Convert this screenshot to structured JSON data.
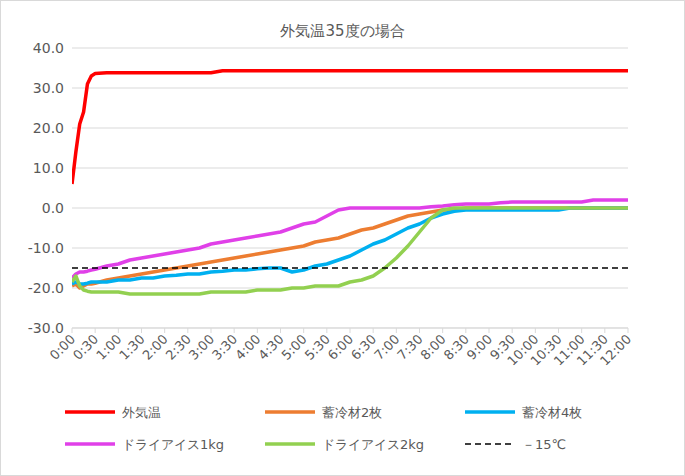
{
  "chart_data": {
    "type": "line",
    "title": "外気温35度の場合",
    "x": [
      0,
      5,
      10,
      15,
      20,
      25,
      30,
      45,
      60,
      75,
      90,
      105,
      120,
      135,
      150,
      165,
      180,
      195,
      210,
      225,
      240,
      255,
      270,
      285,
      300,
      315,
      330,
      345,
      360,
      375,
      390,
      405,
      420,
      435,
      450,
      465,
      480,
      495,
      510,
      525,
      540,
      555,
      570,
      585,
      600,
      615,
      630,
      645,
      660,
      675,
      690,
      705,
      720
    ],
    "xlim": [
      0,
      720
    ],
    "xticks": [
      {
        "value": 0,
        "label": "0:00"
      },
      {
        "value": 30,
        "label": "0:30"
      },
      {
        "value": 60,
        "label": "1:00"
      },
      {
        "value": 90,
        "label": "1:30"
      },
      {
        "value": 120,
        "label": "2:00"
      },
      {
        "value": 150,
        "label": "2:30"
      },
      {
        "value": 180,
        "label": "3:00"
      },
      {
        "value": 210,
        "label": "3:30"
      },
      {
        "value": 240,
        "label": "4:00"
      },
      {
        "value": 270,
        "label": "4:30"
      },
      {
        "value": 300,
        "label": "5:00"
      },
      {
        "value": 330,
        "label": "5:30"
      },
      {
        "value": 360,
        "label": "6:00"
      },
      {
        "value": 390,
        "label": "6:30"
      },
      {
        "value": 420,
        "label": "7:00"
      },
      {
        "value": 450,
        "label": "7:30"
      },
      {
        "value": 480,
        "label": "8:00"
      },
      {
        "value": 510,
        "label": "8:30"
      },
      {
        "value": 540,
        "label": "9:00"
      },
      {
        "value": 570,
        "label": "9:30"
      },
      {
        "value": 600,
        "label": "10:00"
      },
      {
        "value": 630,
        "label": "10:30"
      },
      {
        "value": 660,
        "label": "11:00"
      },
      {
        "value": 690,
        "label": "11:30"
      },
      {
        "value": 720,
        "label": "12:00"
      }
    ],
    "ylim": [
      -30,
      40
    ],
    "yticks": [
      {
        "value": -30,
        "label": "-30.0"
      },
      {
        "value": -20,
        "label": "-20.0"
      },
      {
        "value": -10,
        "label": "-10.0"
      },
      {
        "value": 0,
        "label": "0.0"
      },
      {
        "value": 10,
        "label": "10.0"
      },
      {
        "value": 20,
        "label": "20.0"
      },
      {
        "value": 30,
        "label": "30.0"
      },
      {
        "value": 40,
        "label": "40.0"
      }
    ],
    "grid": true,
    "legend": "bottom",
    "series": [
      {
        "name": "外気温",
        "color": "#ff0000",
        "line_style": "solid",
        "values": [
          6,
          14,
          21,
          24,
          31,
          33,
          33.6,
          33.8,
          33.8,
          33.8,
          33.8,
          33.8,
          33.8,
          33.8,
          33.8,
          33.8,
          33.8,
          34.3,
          34.3,
          34.3,
          34.3,
          34.3,
          34.3,
          34.3,
          34.3,
          34.3,
          34.3,
          34.3,
          34.3,
          34.3,
          34.3,
          34.3,
          34.3,
          34.3,
          34.3,
          34.3,
          34.3,
          34.3,
          34.3,
          34.3,
          34.3,
          34.3,
          34.3,
          34.3,
          34.3,
          34.3,
          34.3,
          34.3,
          34.3,
          34.3,
          34.3,
          34.3,
          34.3
        ]
      },
      {
        "name": "蓄冷材2枚",
        "color": "#ed7d31",
        "line_style": "solid",
        "values": [
          -19.5,
          -19,
          -20,
          -19.5,
          -19,
          -19,
          -18.8,
          -18,
          -17.5,
          -17,
          -16.5,
          -16,
          -15.5,
          -15,
          -14.5,
          -14,
          -13.5,
          -13,
          -12.5,
          -12,
          -11.5,
          -11,
          -10.5,
          -10,
          -9.5,
          -8.5,
          -8,
          -7.5,
          -6.5,
          -5.5,
          -5,
          -4,
          -3,
          -2,
          -1.5,
          -1,
          -0.5,
          -0.5,
          0,
          0,
          0,
          0,
          0,
          0,
          0,
          0,
          0,
          0,
          0,
          0,
          0,
          0,
          0
        ]
      },
      {
        "name": "蓄冷材4枚",
        "color": "#00b0f0",
        "line_style": "solid",
        "values": [
          -19,
          -18.5,
          -19,
          -19,
          -18.8,
          -18.5,
          -18.5,
          -18.5,
          -18,
          -18,
          -17.5,
          -17.5,
          -17,
          -16.8,
          -16.5,
          -16.5,
          -16,
          -15.8,
          -15.5,
          -15.5,
          -15.2,
          -15,
          -15,
          -16,
          -15.5,
          -14.5,
          -14,
          -13,
          -12,
          -10.5,
          -9,
          -8,
          -6.5,
          -5,
          -4,
          -2.5,
          -1.5,
          -0.8,
          -0.5,
          -0.5,
          -0.5,
          -0.5,
          -0.5,
          -0.5,
          -0.5,
          -0.5,
          -0.5,
          0,
          0,
          0,
          0,
          0,
          0
        ]
      },
      {
        "name": "ドライアイス1kg",
        "color": "#e040e8",
        "line_style": "solid",
        "values": [
          -17.5,
          -16.5,
          -16,
          -16,
          -15.8,
          -15.5,
          -15.3,
          -14.5,
          -14,
          -13,
          -12.5,
          -12,
          -11.5,
          -11,
          -10.5,
          -10,
          -9,
          -8.5,
          -8,
          -7.5,
          -7,
          -6.5,
          -6,
          -5,
          -4,
          -3.5,
          -2,
          -0.5,
          0,
          0,
          0,
          0,
          0,
          0,
          0,
          0.3,
          0.5,
          0.8,
          1,
          1,
          1,
          1.3,
          1.5,
          1.5,
          1.5,
          1.5,
          1.5,
          1.5,
          1.5,
          2,
          2,
          2,
          2
        ]
      },
      {
        "name": "ドライアイス2kg",
        "color": "#92d050",
        "line_style": "solid",
        "values": [
          -18.5,
          -17,
          -19.5,
          -20.5,
          -20.8,
          -21,
          -21,
          -21,
          -21,
          -21.5,
          -21.5,
          -21.5,
          -21.5,
          -21.5,
          -21.5,
          -21.5,
          -21,
          -21,
          -21,
          -21,
          -20.5,
          -20.5,
          -20.5,
          -20,
          -20,
          -19.5,
          -19.5,
          -19.5,
          -18.5,
          -18,
          -17,
          -15,
          -12.5,
          -9.5,
          -6,
          -2.5,
          -0.5,
          0,
          0,
          0,
          0,
          0,
          0,
          0,
          0,
          0,
          0,
          0,
          0,
          0,
          0,
          0,
          0
        ]
      },
      {
        "name": "－15℃",
        "color": "#000000",
        "line_style": "dashed",
        "values": [
          -15,
          -15,
          -15,
          -15,
          -15,
          -15,
          -15,
          -15,
          -15,
          -15,
          -15,
          -15,
          -15,
          -15,
          -15,
          -15,
          -15,
          -15,
          -15,
          -15,
          -15,
          -15,
          -15,
          -15,
          -15,
          -15,
          -15,
          -15,
          -15,
          -15,
          -15,
          -15,
          -15,
          -15,
          -15,
          -15,
          -15,
          -15,
          -15,
          -15,
          -15,
          -15,
          -15,
          -15,
          -15,
          -15,
          -15,
          -15,
          -15,
          -15,
          -15,
          -15,
          -15
        ]
      }
    ]
  }
}
